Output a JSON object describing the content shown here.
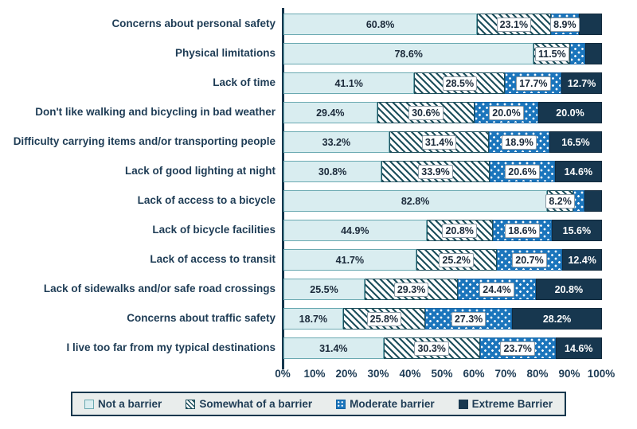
{
  "chart_data": {
    "type": "bar",
    "stacked": true,
    "orientation": "horizontal",
    "title": "",
    "xlabel": "",
    "ylabel": "",
    "xlim": [
      0,
      100
    ],
    "grid": false,
    "legend_position": "bottom",
    "x_ticks": [
      "0%",
      "10%",
      "20%",
      "30%",
      "40%",
      "50%",
      "60%",
      "70%",
      "80%",
      "90%",
      "100%"
    ],
    "series_names": [
      "Not a barrier",
      "Somewhat of a barrier",
      "Moderate barrier",
      "Extreme Barrier"
    ],
    "categories": [
      "Concerns about personal safety",
      "Physical limitations",
      "Lack of time",
      "Don't like walking and bicycling in bad weather",
      "Difficulty carrying items and/or transporting people",
      "Lack of good lighting at night",
      "Lack of access to a bicycle",
      "Lack of bicycle facilities",
      "Lack of access to transit",
      "Lack of sidewalks and/or safe road crossings",
      "Concerns about traffic safety",
      "I live too far from my typical destinations"
    ],
    "rows": [
      {
        "category": "Concerns about personal safety",
        "values": [
          60.8,
          23.1,
          8.9,
          7.2
        ],
        "labels": [
          "60.8%",
          "23.1%",
          "8.9%",
          ""
        ]
      },
      {
        "category": "Physical limitations",
        "values": [
          78.6,
          11.5,
          4.6,
          5.3
        ],
        "labels": [
          "78.6%",
          "11.5%",
          "",
          ""
        ]
      },
      {
        "category": "Lack of time",
        "values": [
          41.1,
          28.5,
          17.7,
          12.7
        ],
        "labels": [
          "41.1%",
          "28.5%",
          "17.7%",
          "12.7%"
        ]
      },
      {
        "category": "Don't like walking and bicycling in bad weather",
        "values": [
          29.4,
          30.6,
          20.0,
          20.0
        ],
        "labels": [
          "29.4%",
          "30.6%",
          "20.0%",
          "20.0%"
        ]
      },
      {
        "category": "Difficulty carrying items and/or transporting people",
        "values": [
          33.2,
          31.4,
          18.9,
          16.5
        ],
        "labels": [
          "33.2%",
          "31.4%",
          "18.9%",
          "16.5%"
        ]
      },
      {
        "category": "Lack of good lighting at night",
        "values": [
          30.8,
          33.9,
          20.6,
          14.6
        ],
        "labels": [
          "30.8%",
          "33.9%",
          "20.6%",
          "14.6%"
        ]
      },
      {
        "category": "Lack of access to a bicycle",
        "values": [
          82.8,
          8.2,
          3.5,
          5.5
        ],
        "labels": [
          "82.8%",
          "8.2%",
          "",
          ""
        ]
      },
      {
        "category": "Lack of bicycle facilities",
        "values": [
          44.9,
          20.8,
          18.6,
          15.6
        ],
        "labels": [
          "44.9%",
          "20.8%",
          "18.6%",
          "15.6%"
        ]
      },
      {
        "category": "Lack of access to transit",
        "values": [
          41.7,
          25.2,
          20.7,
          12.4
        ],
        "labels": [
          "41.7%",
          "25.2%",
          "20.7%",
          "12.4%"
        ]
      },
      {
        "category": "Lack of sidewalks and/or safe road crossings",
        "values": [
          25.5,
          29.3,
          24.4,
          20.8
        ],
        "labels": [
          "25.5%",
          "29.3%",
          "24.4%",
          "20.8%"
        ]
      },
      {
        "category": "Concerns about traffic safety",
        "values": [
          18.7,
          25.8,
          27.3,
          28.2
        ],
        "labels": [
          "18.7%",
          "25.8%",
          "27.3%",
          "28.2%"
        ]
      },
      {
        "category": "I live too far from my typical destinations",
        "values": [
          31.4,
          30.3,
          23.7,
          14.6
        ],
        "labels": [
          "31.4%",
          "30.3%",
          "23.7%",
          "14.6%"
        ]
      }
    ]
  },
  "legend": {
    "items": [
      {
        "label": "Not a barrier"
      },
      {
        "label": "Somewhat of a barrier"
      },
      {
        "label": "Moderate barrier"
      },
      {
        "label": "Extreme Barrier"
      }
    ]
  },
  "colors": {
    "not_a_barrier_fill": "#d9edf0",
    "not_a_barrier_border": "#6aa9b1",
    "somewhat_stripe": "#1d4f5c",
    "moderate_blue": "#1b75bc",
    "extreme_navy": "#17374f",
    "axis_line": "#16384e",
    "text": "#1e3c55",
    "legend_bg": "#e9edec",
    "legend_border": "#16384e"
  }
}
